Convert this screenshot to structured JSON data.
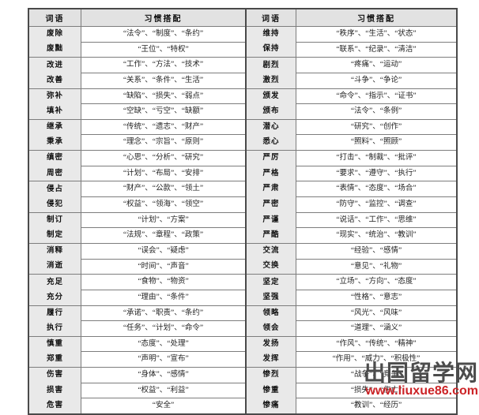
{
  "watermark": {
    "site_name": "出国留学网",
    "site_url": "www.liuxue86.com"
  },
  "tables": [
    {
      "headers": [
        "词语",
        "习惯搭配"
      ],
      "groups": [
        {
          "words": [
            "废除",
            "废黜"
          ],
          "collocations": [
            "“法令”、“制度”、“条约”",
            "“王位”、“特权”"
          ]
        },
        {
          "words": [
            "改进",
            "改善"
          ],
          "collocations": [
            "“工作”、“方法”、“技术”",
            "“关系”、“条件”、“生活”"
          ]
        },
        {
          "words": [
            "弥补",
            "填补"
          ],
          "collocations": [
            "“缺陷”、“损失”、“弱点”",
            "“空缺”、“亏空”、“缺额”"
          ]
        },
        {
          "words": [
            "继承",
            "秉承"
          ],
          "collocations": [
            "“传统”、“遗志”、“财产”",
            "“理念”、“宗旨”、“原则”"
          ]
        },
        {
          "words": [
            "缜密",
            "周密"
          ],
          "collocations": [
            "“心思”、“分析”、“研究”",
            "“计划”、“布局”、“安排”"
          ]
        },
        {
          "words": [
            "侵占",
            "侵犯"
          ],
          "collocations": [
            "“财产”、“公款”、“领土”",
            "“权益”、“领海”、“领空”"
          ]
        },
        {
          "words": [
            "制订",
            "制定"
          ],
          "collocations": [
            "“计划”、“方案”",
            "“法规”、“章程”、“政策”"
          ]
        },
        {
          "words": [
            "消释",
            "消逝"
          ],
          "collocations": [
            "“误会”、“疑虑”",
            "“时间”、“声音”"
          ]
        },
        {
          "words": [
            "充足",
            "充分"
          ],
          "collocations": [
            "“食物”、“物资”",
            "“理由”、“条件”"
          ]
        },
        {
          "words": [
            "履行",
            "执行"
          ],
          "collocations": [
            "“承诺”、“职责”、“条约”",
            "“任务”、“计划”、“命令”"
          ]
        },
        {
          "words": [
            "慎重",
            "郑重"
          ],
          "collocations": [
            "“态度”、“处理”",
            "“声明”、“宣布”"
          ]
        },
        {
          "words": [
            "伤害",
            "损害",
            "危害"
          ],
          "collocations": [
            "“身体”、“感情”",
            "“权益”、“利益”",
            "“安全”"
          ]
        }
      ]
    },
    {
      "headers": [
        "词语",
        "习惯搭配"
      ],
      "groups": [
        {
          "words": [
            "维持",
            "保持"
          ],
          "collocations": [
            "“秩序”、“生活”、“状态”",
            "“联系”、“纪录”、“清洁”"
          ]
        },
        {
          "words": [
            "剧烈",
            "激烈"
          ],
          "collocations": [
            "“疼痛”、“运动”",
            "“斗争”、“争论”"
          ]
        },
        {
          "words": [
            "颁发",
            "颁布"
          ],
          "collocations": [
            "“命令”、“指示”、“证书”",
            "“法令”、“条例”"
          ]
        },
        {
          "words": [
            "潜心",
            "悉心"
          ],
          "collocations": [
            "“研究”、“创作”",
            "“照料”、“照顾”"
          ]
        },
        {
          "words": [
            "严厉",
            "严格",
            "严肃",
            "严密",
            "严谨",
            "严酷"
          ],
          "collocations": [
            "“打击”、“制裁”、“批评”",
            "“要求”、“遵守”、“执行”",
            "“表情”、“态度”、“场合”",
            "“防守”、“监控”、“调查”",
            "“说话”、“工作”、“思维”",
            "“现实”、“统治”、“教训”"
          ]
        },
        {
          "words": [
            "交流",
            "交换"
          ],
          "collocations": [
            "“经验”、“感情”",
            "“意见”、“礼物”"
          ]
        },
        {
          "words": [
            "坚定",
            "坚强"
          ],
          "collocations": [
            "“立场”、“方向”、“态度”",
            "“性格”、“意志”"
          ]
        },
        {
          "words": [
            "领略",
            "领会"
          ],
          "collocations": [
            "“风光”、“风味”",
            "“道理”、“涵义”"
          ]
        },
        {
          "words": [
            "发扬",
            "发挥"
          ],
          "collocations": [
            "“作风”、“传统”、“精神”",
            "“作用”、“威力”、“积极性”"
          ]
        },
        {
          "words": [
            "惨烈",
            "惨重",
            "惨痛"
          ],
          "collocations": [
            "“战争”、“竞争”",
            "“损失”、“伤亡”",
            "“教训”、“经历”"
          ]
        }
      ]
    }
  ]
}
